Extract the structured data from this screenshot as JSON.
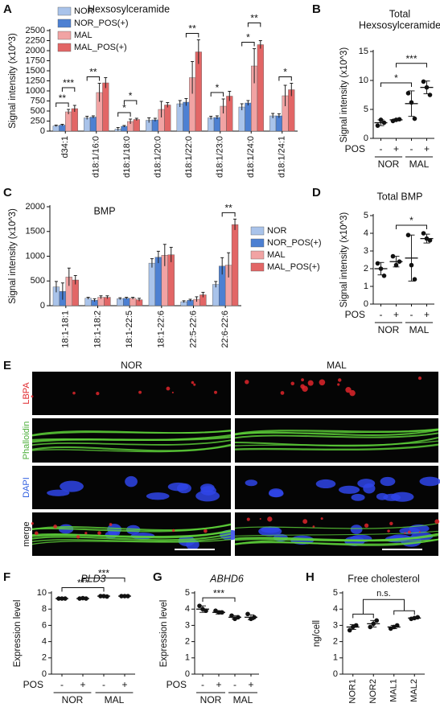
{
  "chart_data": [
    {
      "type": "bar",
      "panel": "A",
      "title": "Hexsosylceramide",
      "ylabel": "Signal intensity (x10^3)",
      "categories": [
        "d34:1",
        "d18:1/16:0",
        "d18:1/18:0",
        "d18:1/20:0",
        "d18:1/22:0",
        "d18:1/23:0",
        "d18:1/24:0",
        "d18:1/24:1"
      ],
      "series": [
        {
          "name": "NOR",
          "color": "#a9c3ea",
          "values": [
            130,
            330,
            50,
            270,
            680,
            330,
            600,
            380
          ],
          "errors": [
            20,
            40,
            40,
            60,
            80,
            40,
            80,
            60
          ]
        },
        {
          "name": "NOR_POS(+)",
          "color": "#4d80d2",
          "values": [
            150,
            350,
            120,
            280,
            720,
            340,
            700,
            380
          ],
          "errors": [
            20,
            30,
            20,
            40,
            90,
            40,
            60,
            50
          ]
        },
        {
          "name": "MAL",
          "color": "#f1a3a3",
          "values": [
            480,
            960,
            240,
            540,
            1330,
            620,
            1620,
            880
          ],
          "errors": [
            60,
            230,
            60,
            200,
            400,
            180,
            430,
            260
          ]
        },
        {
          "name": "MAL_POS(+)",
          "color": "#e26666",
          "values": [
            560,
            1200,
            290,
            650,
            1970,
            870,
            2150,
            1030
          ],
          "errors": [
            80,
            130,
            30,
            60,
            300,
            120,
            100,
            160
          ]
        }
      ],
      "ylim": [
        0,
        2500
      ],
      "yticks": [
        0,
        250,
        500,
        750,
        1000,
        1250,
        1500,
        1750,
        2000,
        2250,
        2500
      ],
      "legend": "upper left",
      "brackets": [
        {
          "text": "**"
        },
        {
          "text": "***"
        },
        {
          "text": "**"
        },
        {
          "text": "*"
        },
        {
          "text": "*"
        },
        {
          "text": "**"
        },
        {
          "text": "*"
        },
        {
          "text": "*"
        },
        {
          "text": "**"
        },
        {
          "text": "*"
        }
      ]
    },
    {
      "type": "dot",
      "panel": "B",
      "title": [
        "Total",
        "Hexsosylceramide"
      ],
      "ylabel": "Signal intensity (x10^3)",
      "categories": [
        "-",
        "+",
        "-",
        "+"
      ],
      "groups": [
        "NOR",
        "MAL"
      ],
      "group_label": "POS",
      "points": [
        [
          2.2,
          3.2,
          2.7
        ],
        [
          3.0,
          3.2,
          3.3
        ],
        [
          7.8,
          6.2,
          3.4
        ],
        [
          9.8,
          8.8,
          7.5
        ]
      ],
      "values": [
        2.7,
        3.2,
        6.0,
        8.8
      ],
      "errors": [
        0.5,
        0.15,
        2.2,
        1.1
      ],
      "ylim": [
        0,
        15
      ],
      "yticks": [
        0,
        5,
        10,
        15
      ],
      "brackets": [
        {
          "text": "*"
        },
        {
          "text": "***"
        }
      ]
    },
    {
      "type": "bar",
      "panel": "C",
      "title": "BMP",
      "ylabel": "Signal intensity (x10^3)",
      "categories": [
        "18:1-18:1",
        "18:1-18:2",
        "18:1-22:5",
        "18:1-22:6",
        "22:5-22:6",
        "22:6-22:6"
      ],
      "series": [
        {
          "name": "NOR",
          "color": "#a9c3ea",
          "values": [
            380,
            150,
            140,
            860,
            80,
            430
          ],
          "errors": [
            110,
            20,
            20,
            90,
            20,
            60
          ]
        },
        {
          "name": "NOR_POS(+)",
          "color": "#4d80d2",
          "values": [
            290,
            110,
            150,
            980,
            110,
            800
          ],
          "errors": [
            170,
            30,
            20,
            120,
            20,
            170
          ]
        },
        {
          "name": "MAL",
          "color": "#f1a3a3",
          "values": [
            580,
            170,
            150,
            1020,
            130,
            820
          ],
          "errors": [
            180,
            30,
            20,
            220,
            50,
            250
          ]
        },
        {
          "name": "MAL_POS(+)",
          "color": "#e26666",
          "values": [
            520,
            170,
            120,
            1030,
            220,
            1640
          ],
          "errors": [
            90,
            30,
            30,
            150,
            50,
            110
          ]
        }
      ],
      "ylim": [
        0,
        2000
      ],
      "yticks": [
        0,
        500,
        1000,
        1500,
        2000
      ],
      "legend": "right",
      "brackets": [
        {
          "text": "**"
        }
      ]
    },
    {
      "type": "dot",
      "panel": "D",
      "title": "Total BMP",
      "ylabel": "Signal intensity (x10^3)",
      "categories": [
        "-",
        "+",
        "-",
        "+"
      ],
      "groups": [
        "NOR",
        "MAL"
      ],
      "group_label": "POS",
      "points": [
        [
          2.3,
          2.0,
          1.6
        ],
        [
          2.7,
          2.2,
          2.4
        ],
        [
          3.9,
          2.2,
          1.4
        ],
        [
          4.0,
          3.7,
          3.6
        ]
      ],
      "values": [
        2.0,
        2.4,
        2.6,
        3.7
      ],
      "errors": [
        0.35,
        0.3,
        1.3,
        0.25
      ],
      "ylim": [
        0,
        5
      ],
      "yticks": [
        0,
        1,
        2,
        3,
        4,
        5
      ],
      "brackets": [
        {
          "text": "*"
        }
      ]
    },
    {
      "type": "dot",
      "panel": "F",
      "title": "PLD3",
      "title_style": "italic",
      "ylabel": "Expression level",
      "categories": [
        "-",
        "+",
        "-",
        "+"
      ],
      "groups": [
        "NOR",
        "MAL"
      ],
      "group_label": "POS",
      "points": [
        [
          9.3,
          9.3,
          9.3
        ],
        [
          9.3,
          9.35,
          9.3
        ],
        [
          9.6,
          9.6,
          9.55
        ],
        [
          9.6,
          9.6,
          9.6
        ]
      ],
      "values": [
        9.3,
        9.3,
        9.6,
        9.6
      ],
      "errors": [
        0.05,
        0.05,
        0.05,
        0.05
      ],
      "ylim": [
        0,
        10
      ],
      "yticks": [
        0,
        2,
        4,
        6,
        8,
        10
      ],
      "brackets": [
        {
          "text": "***"
        },
        {
          "text": "***"
        }
      ]
    },
    {
      "type": "dot",
      "panel": "G",
      "title": "ABHD6",
      "title_style": "italic",
      "ylabel": "Expression level",
      "categories": [
        "-",
        "+",
        "-",
        "+"
      ],
      "groups": [
        "NOR",
        "MAL"
      ],
      "group_label": "POS",
      "points": [
        [
          4.2,
          4.0,
          3.9
        ],
        [
          3.9,
          3.8,
          3.8
        ],
        [
          3.6,
          3.4,
          3.5
        ],
        [
          3.7,
          3.4,
          3.5
        ]
      ],
      "values": [
        4.0,
        3.8,
        3.5,
        3.5
      ],
      "errors": [
        0.2,
        0.1,
        0.1,
        0.15
      ],
      "ylim": [
        0,
        5
      ],
      "yticks": [
        0,
        1,
        2,
        3,
        4,
        5
      ],
      "brackets": [
        {
          "text": "***"
        }
      ]
    },
    {
      "type": "dot",
      "panel": "H",
      "title": "Free cholesterol",
      "ylabel": "ng/cell",
      "categories": [
        "NOR1",
        "NOR2",
        "MAL1",
        "MAL2"
      ],
      "rotate_labels": true,
      "points": [
        [
          2.7,
          2.9,
          3.0
        ],
        [
          2.9,
          3.1,
          3.3
        ],
        [
          2.8,
          2.9,
          3.0
        ],
        [
          3.4,
          3.45,
          3.5
        ]
      ],
      "values": [
        2.9,
        3.1,
        2.9,
        3.45
      ],
      "errors": [
        0.15,
        0.2,
        0.1,
        0.05
      ],
      "ylim": [
        0,
        5
      ],
      "yticks": [
        0,
        1,
        2,
        3,
        4,
        5
      ],
      "brackets": [
        {
          "text": "n.s."
        }
      ]
    }
  ],
  "figure_panel": {
    "panel": "E",
    "columns": [
      "NOR",
      "MAL"
    ],
    "rows": [
      "LBPA",
      "Phalloidin",
      "DAPI",
      "merge"
    ]
  }
}
